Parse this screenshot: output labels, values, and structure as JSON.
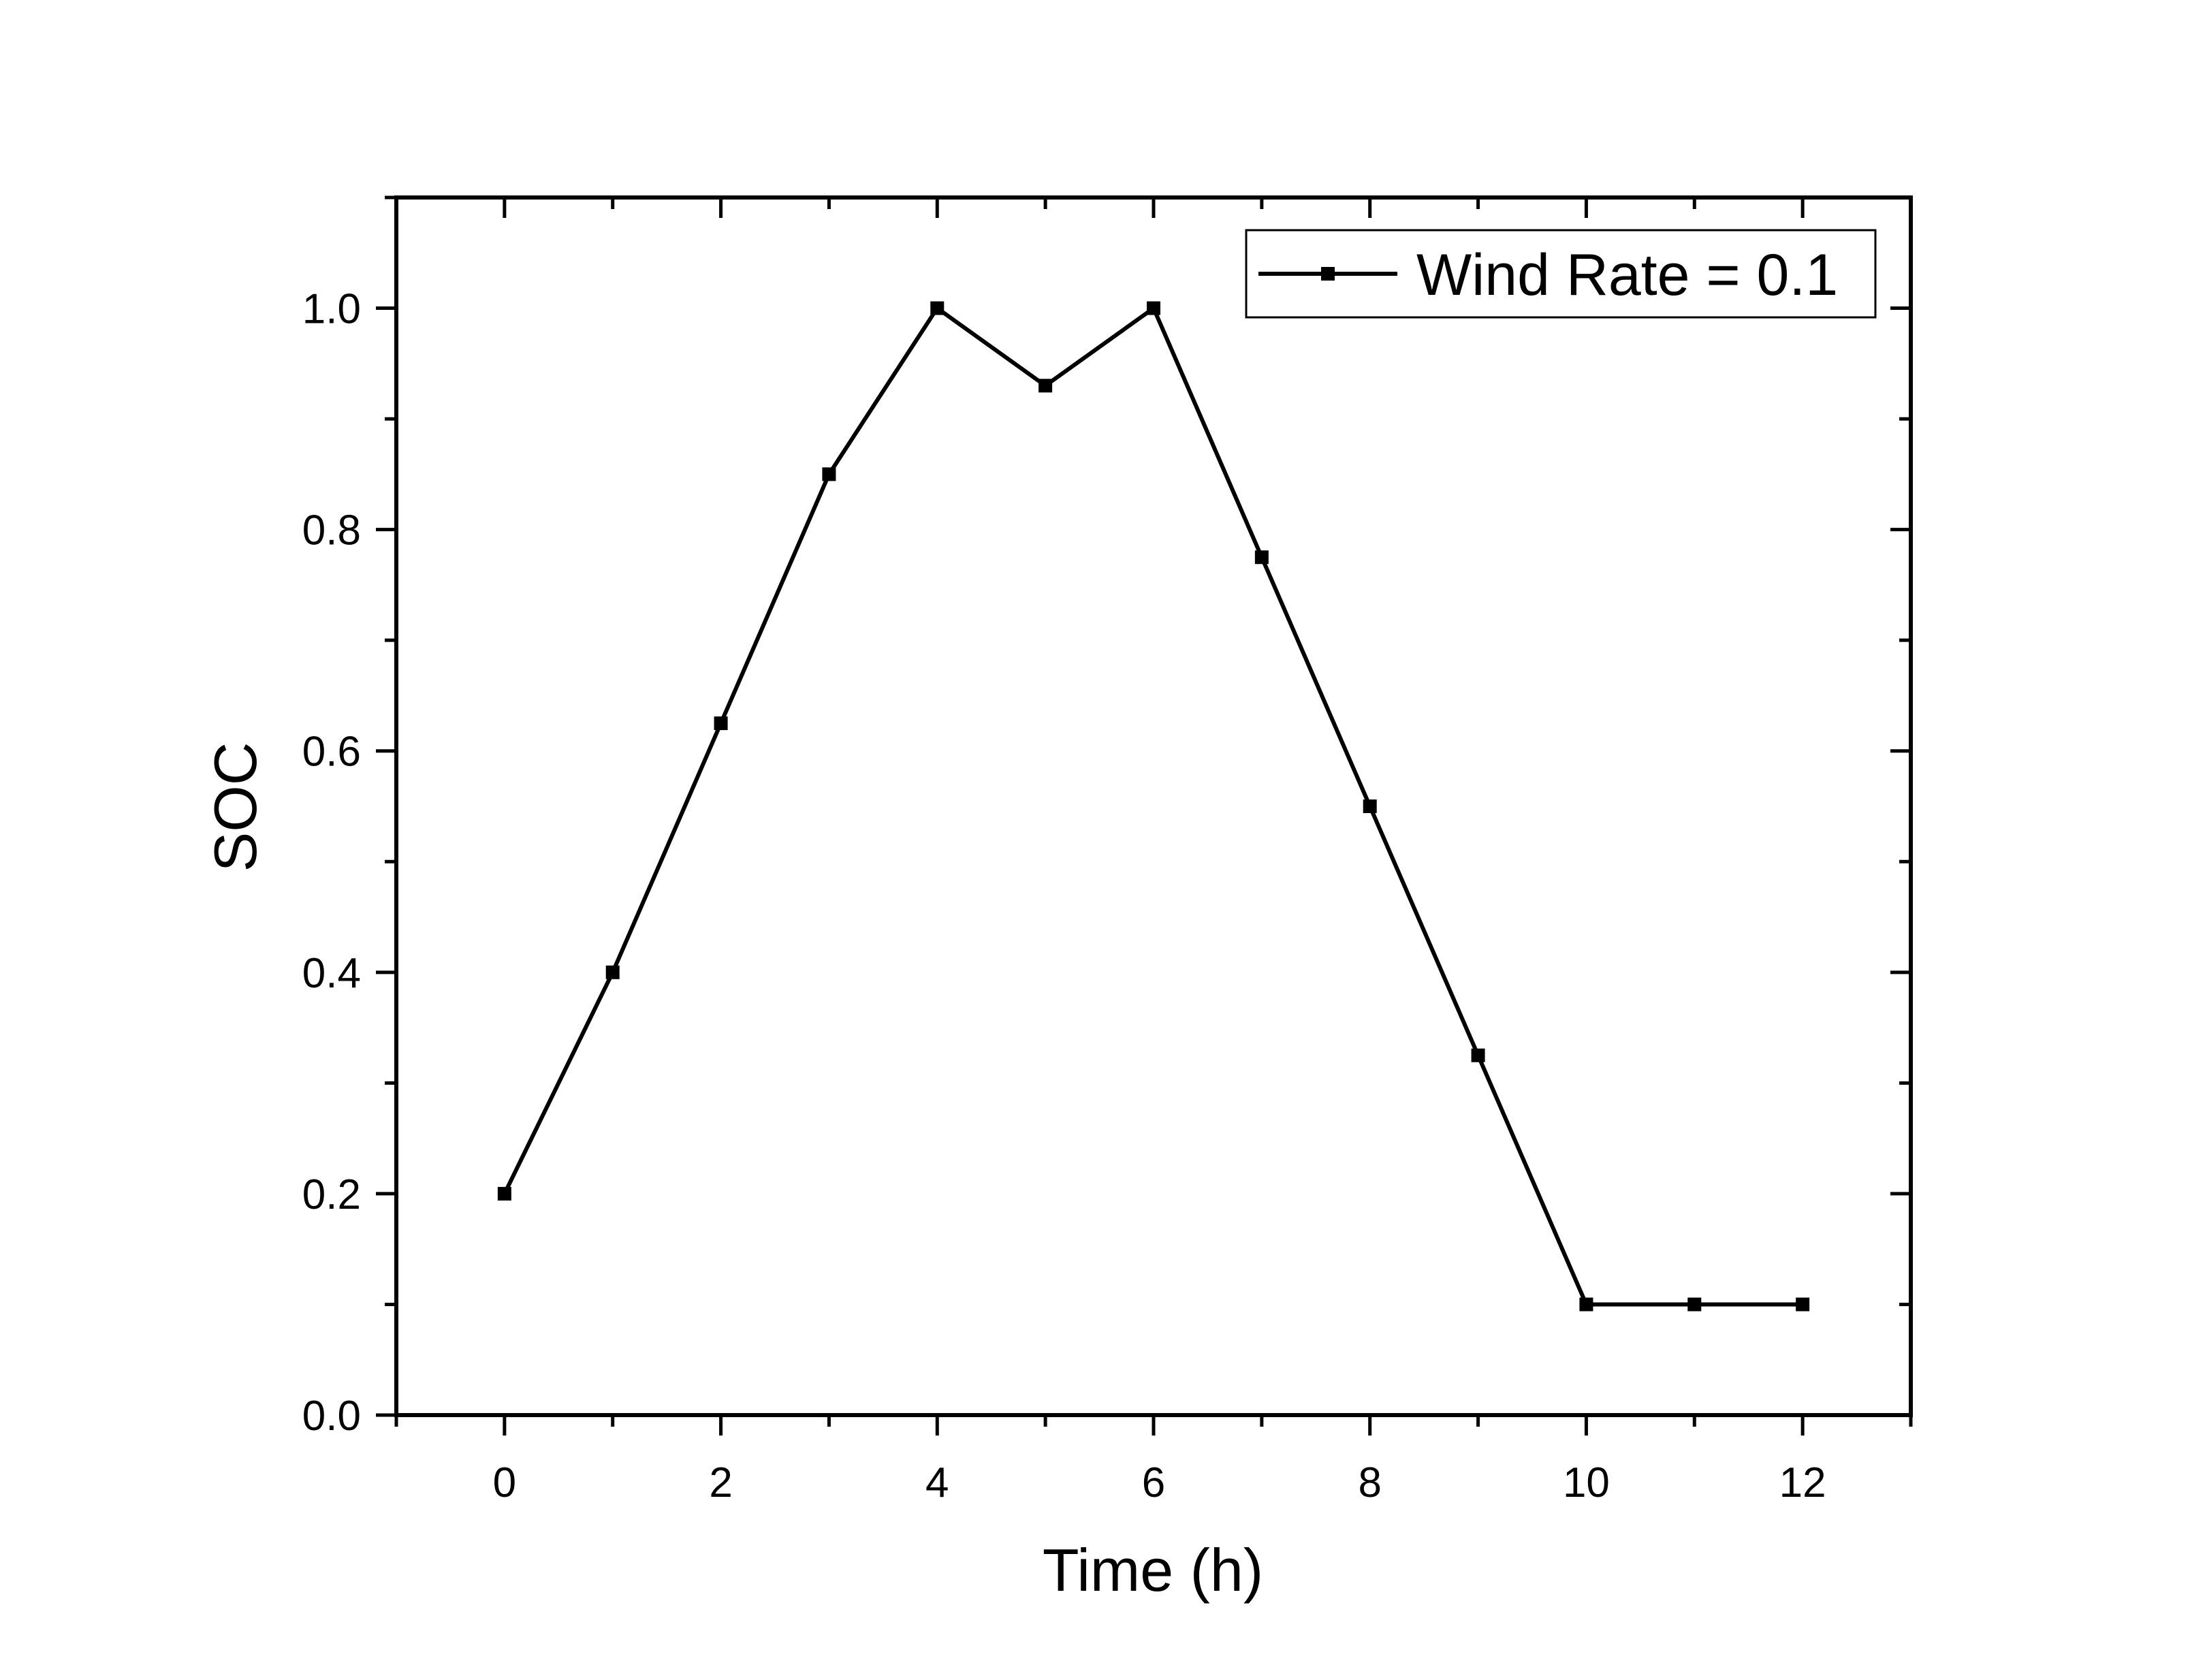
{
  "chart_data": {
    "type": "line",
    "title": "",
    "xlabel": "Time (h)",
    "ylabel": "SOC",
    "xlim": [
      -1,
      13
    ],
    "ylim": [
      0.0,
      1.1
    ],
    "x_ticks": [
      0,
      2,
      4,
      6,
      8,
      10,
      12
    ],
    "x_tick_labels": [
      "0",
      "2",
      "4",
      "6",
      "8",
      "10",
      "12"
    ],
    "x_minor_ticks": [
      -1,
      1,
      3,
      5,
      7,
      9,
      11,
      13
    ],
    "y_ticks": [
      0.0,
      0.2,
      0.4,
      0.6,
      0.8,
      1.0
    ],
    "y_tick_labels": [
      "0.0",
      "0.2",
      "0.4",
      "0.6",
      "0.8",
      "1.0"
    ],
    "y_minor_ticks": [
      0.1,
      0.3,
      0.5,
      0.7,
      0.9,
      1.1
    ],
    "grid": false,
    "legend_position": "top-right",
    "series": [
      {
        "name": "Wind Rate = 0.1",
        "color": "#000000",
        "marker": "square",
        "x": [
          0,
          1,
          2,
          3,
          4,
          5,
          6,
          7,
          8,
          9,
          10,
          11,
          12
        ],
        "y": [
          0.2,
          0.4,
          0.625,
          0.85,
          1.0,
          0.93,
          1.0,
          0.775,
          0.55,
          0.325,
          0.1,
          0.1,
          0.1
        ]
      }
    ]
  }
}
